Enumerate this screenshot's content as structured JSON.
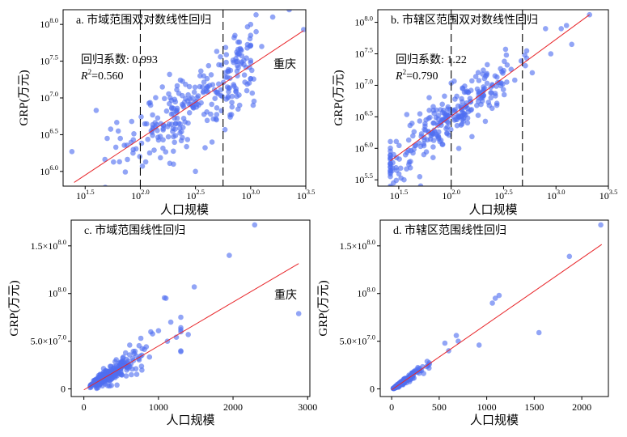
{
  "colors": {
    "point": "#4f6ef0",
    "fit": "#e8262a",
    "axis": "#000000"
  },
  "chart_data": [
    {
      "id": "a",
      "type": "scatter",
      "title": "a. 市域范围双对数线性回归",
      "xlabel": "人口规模",
      "ylabel": "GRP(万元)",
      "scale": "log10",
      "xlim": [
        1.3,
        3.5
      ],
      "ylim": [
        5.8,
        8.2
      ],
      "xticks": [
        {
          "v": 1.5,
          "base": "10",
          "exp": "1.5"
        },
        {
          "v": 2.0,
          "base": "10",
          "exp": "2.0"
        },
        {
          "v": 2.5,
          "base": "10",
          "exp": "2.5"
        },
        {
          "v": 3.0,
          "base": "10",
          "exp": "3.0"
        },
        {
          "v": 3.5,
          "base": "10",
          "exp": "3.5"
        }
      ],
      "yticks": [
        {
          "v": 6.0,
          "base": "10",
          "exp": "6.0"
        },
        {
          "v": 6.5,
          "base": "10",
          "exp": "6.5"
        },
        {
          "v": 7.0,
          "base": "10",
          "exp": "7.0"
        },
        {
          "v": 7.5,
          "base": "10",
          "exp": "7.5"
        },
        {
          "v": 8.0,
          "base": "10",
          "exp": "8.0"
        }
      ],
      "vlines": [
        2.0,
        2.75
      ],
      "fit": {
        "slope": 0.993,
        "intercept": 4.46,
        "x": [
          1.4,
          3.48
        ]
      },
      "annotations": {
        "coef_label": "回归系数",
        "coef_value": "0.993",
        "r2_prefix": "R",
        "r2_value": "=0.560",
        "city": "重庆"
      },
      "n_points": 285,
      "points": [
        [
          1.38,
          6.27
        ],
        [
          1.6,
          6.83
        ],
        [
          1.7,
          6.45
        ],
        [
          1.8,
          6.55
        ],
        [
          2.5,
          6.0
        ],
        [
          2.3,
          6.1
        ],
        [
          2.65,
          6.4
        ],
        [
          2.9,
          6.9
        ],
        [
          3.1,
          7.7
        ],
        [
          3.2,
          8.1
        ],
        [
          3.35,
          8.2
        ],
        [
          3.48,
          7.93
        ],
        [
          3.0,
          8.0
        ],
        [
          3.05,
          7.9
        ],
        [
          2.85,
          7.82
        ],
        [
          2.2,
          7.15
        ]
      ]
    },
    {
      "id": "b",
      "type": "scatter",
      "title": "b. 市辖区范围双对数线性回归",
      "xlabel": "人口规模",
      "ylabel": "GRP(万元)",
      "scale": "log10",
      "xlim": [
        1.3,
        3.5
      ],
      "ylim": [
        5.4,
        8.2
      ],
      "xticks": [
        {
          "v": 1.5,
          "base": "10",
          "exp": "1.5"
        },
        {
          "v": 2.0,
          "base": "10",
          "exp": "2.0"
        },
        {
          "v": 2.5,
          "base": "10",
          "exp": "2.5"
        },
        {
          "v": 3.0,
          "base": "10",
          "exp": "3.0"
        },
        {
          "v": 3.5,
          "base": "10",
          "exp": "3.5"
        }
      ],
      "yticks": [
        {
          "v": 5.5,
          "base": "10",
          "exp": "5.5"
        },
        {
          "v": 6.0,
          "base": "10",
          "exp": "6.0"
        },
        {
          "v": 6.5,
          "base": "10",
          "exp": "6.5"
        },
        {
          "v": 7.0,
          "base": "10",
          "exp": "7.0"
        },
        {
          "v": 7.5,
          "base": "10",
          "exp": "7.5"
        },
        {
          "v": 8.0,
          "base": "10",
          "exp": "8.0"
        }
      ],
      "vlines": [
        2.0,
        2.68
      ],
      "fit": {
        "slope": 1.22,
        "intercept": 4.07,
        "x": [
          1.42,
          3.32
        ]
      },
      "annotations": {
        "coef_label": "回归系数",
        "coef_value": "1.22",
        "r2_prefix": "R",
        "r2_value": "=0.790"
      },
      "n_points": 285,
      "points": [
        [
          1.42,
          5.7
        ],
        [
          1.48,
          5.65
        ],
        [
          1.55,
          5.5
        ],
        [
          1.6,
          5.78
        ],
        [
          1.7,
          5.55
        ],
        [
          3.32,
          8.12
        ],
        [
          3.1,
          7.95
        ],
        [
          3.05,
          7.9
        ],
        [
          2.95,
          7.5
        ],
        [
          2.9,
          7.9
        ],
        [
          3.15,
          7.65
        ]
      ]
    },
    {
      "id": "c",
      "type": "scatter",
      "title": "c. 市域范围线性回归",
      "xlabel": "人口规模",
      "ylabel": "GRP(万元)",
      "scale": "linear",
      "xlim": [
        -170,
        3030
      ],
      "ylim": [
        -8000000,
        177000000
      ],
      "xticks": [
        {
          "v": 0,
          "label": "0"
        },
        {
          "v": 1000,
          "label": "1000"
        },
        {
          "v": 2000,
          "label": "2000"
        },
        {
          "v": 3000,
          "label": "3000"
        }
      ],
      "yticks": [
        {
          "v": 0,
          "label": "0"
        },
        {
          "v": 50000000,
          "base": "5.0×10",
          "exp": "7.0"
        },
        {
          "v": 100000000,
          "base": "10",
          "exp": "8.0"
        },
        {
          "v": 150000000,
          "base": "1.5×10",
          "exp": "8.0"
        }
      ],
      "fit": {
        "slope": 46000,
        "intercept": -1000000,
        "x": [
          0,
          2880
        ]
      },
      "annotations": {
        "city": "重庆"
      },
      "n_points": 285,
      "points": [
        [
          2290,
          172000000
        ],
        [
          1950,
          140000000
        ],
        [
          1480,
          107000000
        ],
        [
          2880,
          79000000
        ],
        [
          1400,
          57000000
        ],
        [
          1100,
          95000000
        ],
        [
          1080,
          95500000
        ],
        [
          1000,
          61000000
        ],
        [
          1120,
          50000000
        ]
      ]
    },
    {
      "id": "d",
      "type": "scatter",
      "title": "d. 市辖区范围线性回归",
      "xlabel": "人口规模",
      "ylabel": "GRP(万元)",
      "scale": "linear",
      "xlim": [
        -120,
        2280
      ],
      "ylim": [
        -8000000,
        177000000
      ],
      "xticks": [
        {
          "v": 0,
          "label": "0"
        },
        {
          "v": 500,
          "label": "500"
        },
        {
          "v": 1000,
          "label": "1000"
        },
        {
          "v": 1500,
          "label": "1500"
        },
        {
          "v": 2000,
          "label": "2000"
        }
      ],
      "yticks": [
        {
          "v": 0,
          "label": "0"
        },
        {
          "v": 50000000,
          "base": "5.0×10",
          "exp": "7.0"
        },
        {
          "v": 100000000,
          "base": "10",
          "exp": "8.0"
        },
        {
          "v": 150000000,
          "base": "1.5×10",
          "exp": "8.0"
        }
      ],
      "fit": {
        "slope": 69000,
        "intercept": -1000000,
        "x": [
          0,
          2210
        ]
      },
      "n_points": 285,
      "points": [
        [
          2200,
          172000000
        ],
        [
          1870,
          139000000
        ],
        [
          1130,
          98000000
        ],
        [
          1090,
          95000000
        ],
        [
          1060,
          90000000
        ],
        [
          1550,
          59000000
        ],
        [
          920,
          46000000
        ],
        [
          700,
          50000000
        ],
        [
          680,
          56000000
        ],
        [
          600,
          40000000
        ],
        [
          560,
          48000000
        ]
      ]
    }
  ]
}
